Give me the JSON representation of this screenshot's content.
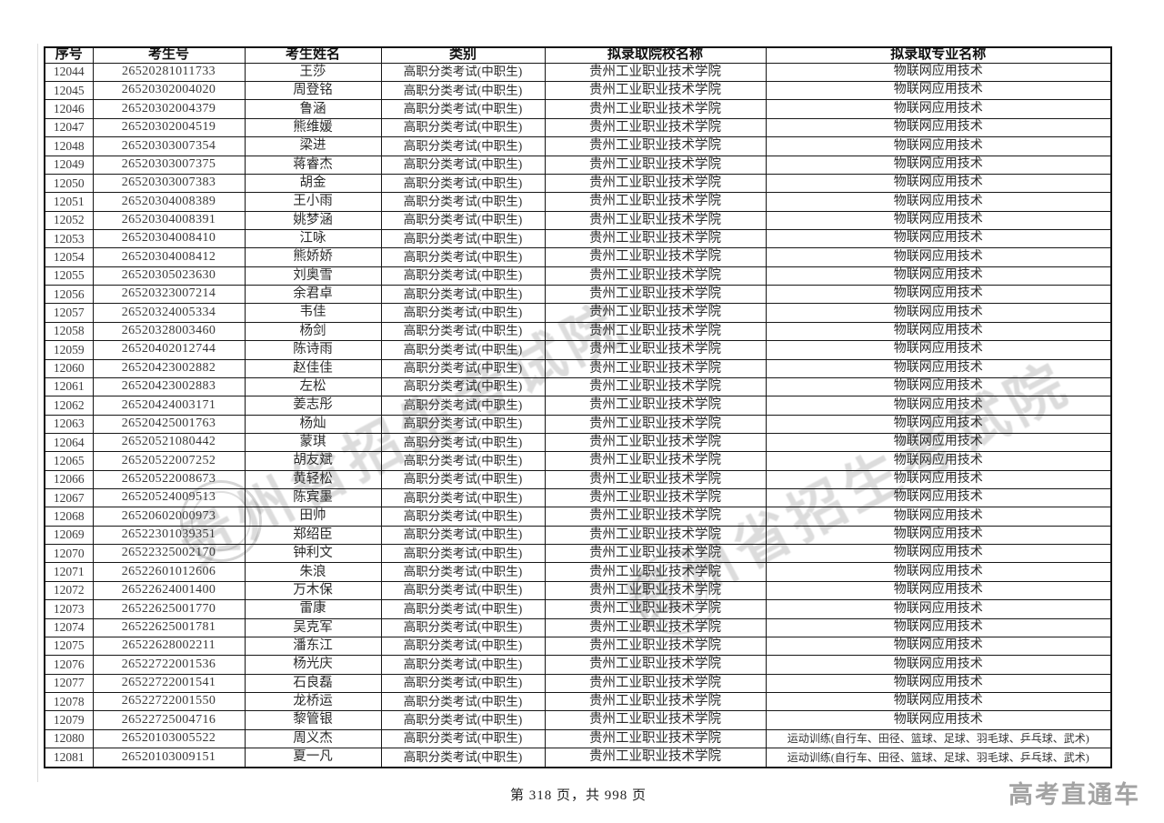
{
  "page": {
    "footer": "第 318 页，共 998 页",
    "brand": "高考直通车"
  },
  "watermark": {
    "text": "贵州省招生考试院",
    "color": "#767676"
  },
  "table": {
    "columns": [
      "序号",
      "考生号",
      "考生姓名",
      "类别",
      "拟录取院校名称",
      "拟录取专业名称"
    ],
    "rows": [
      {
        "seq": "12044",
        "exam_no": "26520281011733",
        "name": "王莎",
        "category": "高职分类考试(中职生)",
        "college": "贵州工业职业技术学院",
        "major": "物联网应用技术"
      },
      {
        "seq": "12045",
        "exam_no": "26520302004020",
        "name": "周登铭",
        "category": "高职分类考试(中职生)",
        "college": "贵州工业职业技术学院",
        "major": "物联网应用技术"
      },
      {
        "seq": "12046",
        "exam_no": "26520302004379",
        "name": "鲁涵",
        "category": "高职分类考试(中职生)",
        "college": "贵州工业职业技术学院",
        "major": "物联网应用技术"
      },
      {
        "seq": "12047",
        "exam_no": "26520302004519",
        "name": "熊维媛",
        "category": "高职分类考试(中职生)",
        "college": "贵州工业职业技术学院",
        "major": "物联网应用技术"
      },
      {
        "seq": "12048",
        "exam_no": "26520303007354",
        "name": "梁进",
        "category": "高职分类考试(中职生)",
        "college": "贵州工业职业技术学院",
        "major": "物联网应用技术"
      },
      {
        "seq": "12049",
        "exam_no": "26520303007375",
        "name": "蒋睿杰",
        "category": "高职分类考试(中职生)",
        "college": "贵州工业职业技术学院",
        "major": "物联网应用技术"
      },
      {
        "seq": "12050",
        "exam_no": "26520303007383",
        "name": "胡金",
        "category": "高职分类考试(中职生)",
        "college": "贵州工业职业技术学院",
        "major": "物联网应用技术"
      },
      {
        "seq": "12051",
        "exam_no": "26520304008389",
        "name": "王小雨",
        "category": "高职分类考试(中职生)",
        "college": "贵州工业职业技术学院",
        "major": "物联网应用技术"
      },
      {
        "seq": "12052",
        "exam_no": "26520304008391",
        "name": "姚梦涵",
        "category": "高职分类考试(中职生)",
        "college": "贵州工业职业技术学院",
        "major": "物联网应用技术"
      },
      {
        "seq": "12053",
        "exam_no": "26520304008410",
        "name": "江咏",
        "category": "高职分类考试(中职生)",
        "college": "贵州工业职业技术学院",
        "major": "物联网应用技术"
      },
      {
        "seq": "12054",
        "exam_no": "26520304008412",
        "name": "熊娇娇",
        "category": "高职分类考试(中职生)",
        "college": "贵州工业职业技术学院",
        "major": "物联网应用技术"
      },
      {
        "seq": "12055",
        "exam_no": "26520305023630",
        "name": "刘奥雪",
        "category": "高职分类考试(中职生)",
        "college": "贵州工业职业技术学院",
        "major": "物联网应用技术"
      },
      {
        "seq": "12056",
        "exam_no": "26520323007214",
        "name": "余君卓",
        "category": "高职分类考试(中职生)",
        "college": "贵州工业职业技术学院",
        "major": "物联网应用技术"
      },
      {
        "seq": "12057",
        "exam_no": "26520324005334",
        "name": "韦佳",
        "category": "高职分类考试(中职生)",
        "college": "贵州工业职业技术学院",
        "major": "物联网应用技术"
      },
      {
        "seq": "12058",
        "exam_no": "26520328003460",
        "name": "杨剑",
        "category": "高职分类考试(中职生)",
        "college": "贵州工业职业技术学院",
        "major": "物联网应用技术"
      },
      {
        "seq": "12059",
        "exam_no": "26520402012744",
        "name": "陈诗雨",
        "category": "高职分类考试(中职生)",
        "college": "贵州工业职业技术学院",
        "major": "物联网应用技术"
      },
      {
        "seq": "12060",
        "exam_no": "26520423002882",
        "name": "赵佳佳",
        "category": "高职分类考试(中职生)",
        "college": "贵州工业职业技术学院",
        "major": "物联网应用技术"
      },
      {
        "seq": "12061",
        "exam_no": "26520423002883",
        "name": "左松",
        "category": "高职分类考试(中职生)",
        "college": "贵州工业职业技术学院",
        "major": "物联网应用技术"
      },
      {
        "seq": "12062",
        "exam_no": "26520424003171",
        "name": "姜志彤",
        "category": "高职分类考试(中职生)",
        "college": "贵州工业职业技术学院",
        "major": "物联网应用技术"
      },
      {
        "seq": "12063",
        "exam_no": "26520425001763",
        "name": "杨灿",
        "category": "高职分类考试(中职生)",
        "college": "贵州工业职业技术学院",
        "major": "物联网应用技术"
      },
      {
        "seq": "12064",
        "exam_no": "26520521080442",
        "name": "蒙琪",
        "category": "高职分类考试(中职生)",
        "college": "贵州工业职业技术学院",
        "major": "物联网应用技术"
      },
      {
        "seq": "12065",
        "exam_no": "26520522007252",
        "name": "胡友斌",
        "category": "高职分类考试(中职生)",
        "college": "贵州工业职业技术学院",
        "major": "物联网应用技术"
      },
      {
        "seq": "12066",
        "exam_no": "26520522008673",
        "name": "黄轻松",
        "category": "高职分类考试(中职生)",
        "college": "贵州工业职业技术学院",
        "major": "物联网应用技术"
      },
      {
        "seq": "12067",
        "exam_no": "26520524009513",
        "name": "陈宾墨",
        "category": "高职分类考试(中职生)",
        "college": "贵州工业职业技术学院",
        "major": "物联网应用技术"
      },
      {
        "seq": "12068",
        "exam_no": "26520602000973",
        "name": "田帅",
        "category": "高职分类考试(中职生)",
        "college": "贵州工业职业技术学院",
        "major": "物联网应用技术"
      },
      {
        "seq": "12069",
        "exam_no": "26522301039351",
        "name": "郑绍臣",
        "category": "高职分类考试(中职生)",
        "college": "贵州工业职业技术学院",
        "major": "物联网应用技术"
      },
      {
        "seq": "12070",
        "exam_no": "26522325002170",
        "name": "钟利文",
        "category": "高职分类考试(中职生)",
        "college": "贵州工业职业技术学院",
        "major": "物联网应用技术"
      },
      {
        "seq": "12071",
        "exam_no": "26522601012606",
        "name": "朱浪",
        "category": "高职分类考试(中职生)",
        "college": "贵州工业职业技术学院",
        "major": "物联网应用技术"
      },
      {
        "seq": "12072",
        "exam_no": "26522624001400",
        "name": "万木保",
        "category": "高职分类考试(中职生)",
        "college": "贵州工业职业技术学院",
        "major": "物联网应用技术"
      },
      {
        "seq": "12073",
        "exam_no": "26522625001770",
        "name": "雷康",
        "category": "高职分类考试(中职生)",
        "college": "贵州工业职业技术学院",
        "major": "物联网应用技术"
      },
      {
        "seq": "12074",
        "exam_no": "26522625001781",
        "name": "吴克军",
        "category": "高职分类考试(中职生)",
        "college": "贵州工业职业技术学院",
        "major": "物联网应用技术"
      },
      {
        "seq": "12075",
        "exam_no": "26522628002211",
        "name": "潘东江",
        "category": "高职分类考试(中职生)",
        "college": "贵州工业职业技术学院",
        "major": "物联网应用技术"
      },
      {
        "seq": "12076",
        "exam_no": "26522722001536",
        "name": "杨光庆",
        "category": "高职分类考试(中职生)",
        "college": "贵州工业职业技术学院",
        "major": "物联网应用技术"
      },
      {
        "seq": "12077",
        "exam_no": "26522722001541",
        "name": "石良磊",
        "category": "高职分类考试(中职生)",
        "college": "贵州工业职业技术学院",
        "major": "物联网应用技术"
      },
      {
        "seq": "12078",
        "exam_no": "26522722001550",
        "name": "龙桥运",
        "category": "高职分类考试(中职生)",
        "college": "贵州工业职业技术学院",
        "major": "物联网应用技术"
      },
      {
        "seq": "12079",
        "exam_no": "26522725004716",
        "name": "黎管银",
        "category": "高职分类考试(中职生)",
        "college": "贵州工业职业技术学院",
        "major": "物联网应用技术"
      },
      {
        "seq": "12080",
        "exam_no": "26520103005522",
        "name": "周义杰",
        "category": "高职分类考试(中职生)",
        "college": "贵州工业职业技术学院",
        "major": "运动训练(自行车、田径、篮球、足球、羽毛球、乒乓球、武术)"
      },
      {
        "seq": "12081",
        "exam_no": "26520103009151",
        "name": "夏一凡",
        "category": "高职分类考试(中职生)",
        "college": "贵州工业职业技术学院",
        "major": "运动训练(自行车、田径、篮球、足球、羽毛球、乒乓球、武术)"
      }
    ]
  }
}
